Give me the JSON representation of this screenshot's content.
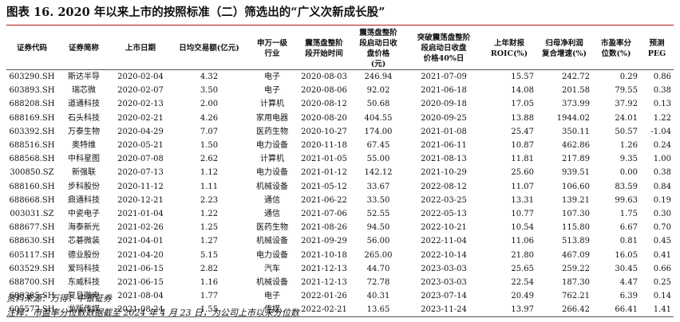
{
  "title": "图表 16. 2020 年以来上市的按照标准（二）筛选出的“广义次新成长股”",
  "table": {
    "headers": [
      "证券代码",
      "证券简称",
      "上市日期",
      "日均交易额(亿元)",
      "申万一级\n行业",
      "震荡盘整阶\n段开始时间",
      "震荡盘整阶\n段启动日收\n盘价格\n(元)",
      "突破震荡盘整阶\n段启动日收盘\n价格40%日",
      "上年财报\nROIC(%)",
      "归母净利润\n复合增速(%)",
      "市盈率分\n位数(%)",
      "预测PEG"
    ],
    "rows": [
      [
        "603290.SH",
        "斯达半导",
        "2020-02-04",
        "4.32",
        "电子",
        "2020-08-03",
        "246.94",
        "2021-07-09",
        "15.57",
        "242.72",
        "0.29",
        "0.86"
      ],
      [
        "603893.SH",
        "瑞芯微",
        "2020-02-07",
        "3.50",
        "电子",
        "2020-08-06",
        "92.02",
        "2021-06-18",
        "14.08",
        "201.58",
        "79.55",
        "0.38"
      ],
      [
        "688208.SH",
        "道通科技",
        "2020-02-13",
        "2.00",
        "计算机",
        "2020-08-12",
        "50.68",
        "2020-09-18",
        "17.05",
        "373.99",
        "37.92",
        "0.13"
      ],
      [
        "688169.SH",
        "石头科技",
        "2020-02-21",
        "4.26",
        "家用电器",
        "2020-08-20",
        "404.55",
        "2020-09-25",
        "13.88",
        "1944.02",
        "24.01",
        "1.22"
      ],
      [
        "603392.SH",
        "万泰生物",
        "2020-04-29",
        "7.07",
        "医药生物",
        "2020-10-27",
        "174.00",
        "2021-01-08",
        "25.47",
        "350.11",
        "50.57",
        "-1.04"
      ],
      [
        "688516.SH",
        "奥特维",
        "2020-05-21",
        "1.50",
        "电力设备",
        "2020-11-18",
        "67.45",
        "2021-06-11",
        "10.87",
        "462.86",
        "1.26",
        "0.24"
      ],
      [
        "688568.SH",
        "中科星图",
        "2020-07-08",
        "2.62",
        "计算机",
        "2021-01-05",
        "55.00",
        "2021-08-13",
        "11.81",
        "217.89",
        "9.35",
        "1.00"
      ],
      [
        "300850.SZ",
        "新强联",
        "2020-07-13",
        "1.12",
        "电力设备",
        "2021-01-12",
        "142.12",
        "2021-10-29",
        "25.60",
        "939.51",
        "0.00",
        "0.38"
      ],
      [
        "688160.SH",
        "步科股份",
        "2020-11-12",
        "1.11",
        "机械设备",
        "2021-05-12",
        "33.67",
        "2022-08-12",
        "11.07",
        "106.60",
        "83.59",
        "0.84"
      ],
      [
        "688668.SH",
        "鼎通科技",
        "2020-12-21",
        "2.23",
        "通信",
        "2021-06-22",
        "33.50",
        "2022-03-25",
        "13.31",
        "139.21",
        "99.63",
        "0.19"
      ],
      [
        "003031.SZ",
        "中瓷电子",
        "2021-01-04",
        "1.22",
        "通信",
        "2021-07-06",
        "52.55",
        "2022-05-13",
        "10.77",
        "107.30",
        "1.75",
        "0.30"
      ],
      [
        "688677.SH",
        "海泰新光",
        "2021-02-26",
        "1.25",
        "医药生物",
        "2021-08-26",
        "94.50",
        "2022-10-21",
        "10.54",
        "115.80",
        "6.67",
        "0.70"
      ],
      [
        "688630.SH",
        "芯碁微装",
        "2021-04-01",
        "1.27",
        "机械设备",
        "2021-09-29",
        "56.00",
        "2022-11-04",
        "11.06",
        "513.89",
        "0.81",
        "0.45"
      ],
      [
        "605117.SH",
        "德业股份",
        "2021-04-20",
        "5.15",
        "电力设备",
        "2021-10-18",
        "265.00",
        "2022-10-14",
        "21.80",
        "467.09",
        "16.05",
        "0.41"
      ],
      [
        "603529.SH",
        "爱玛科技",
        "2021-06-15",
        "2.82",
        "汽车",
        "2021-12-13",
        "44.70",
        "2023-03-03",
        "25.65",
        "259.22",
        "30.45",
        "0.66"
      ],
      [
        "688700.SH",
        "东威科技",
        "2021-06-15",
        "1.16",
        "机械设备",
        "2021-12-13",
        "72.78",
        "2023-03-03",
        "22.54",
        "187.30",
        "4.47",
        "0.25"
      ],
      [
        "688385.SH",
        "复旦微电",
        "2021-08-04",
        "1.77",
        "电子",
        "2022-01-26",
        "40.31",
        "2023-07-14",
        "20.49",
        "762.21",
        "6.39",
        "0.14"
      ],
      [
        "605577.SH",
        "龙版传媒",
        "2021-08-24",
        "1.55",
        "传媒",
        "2022-02-21",
        "13.65",
        "2023-11-24",
        "13.97",
        "266.42",
        "66.41",
        "1.41"
      ]
    ]
  },
  "source": "资料来源：万得，中银证券",
  "note": "注释：市盈率分位数数据截至 2024 年 4 月 23 日，为公司上市以来分位数"
}
